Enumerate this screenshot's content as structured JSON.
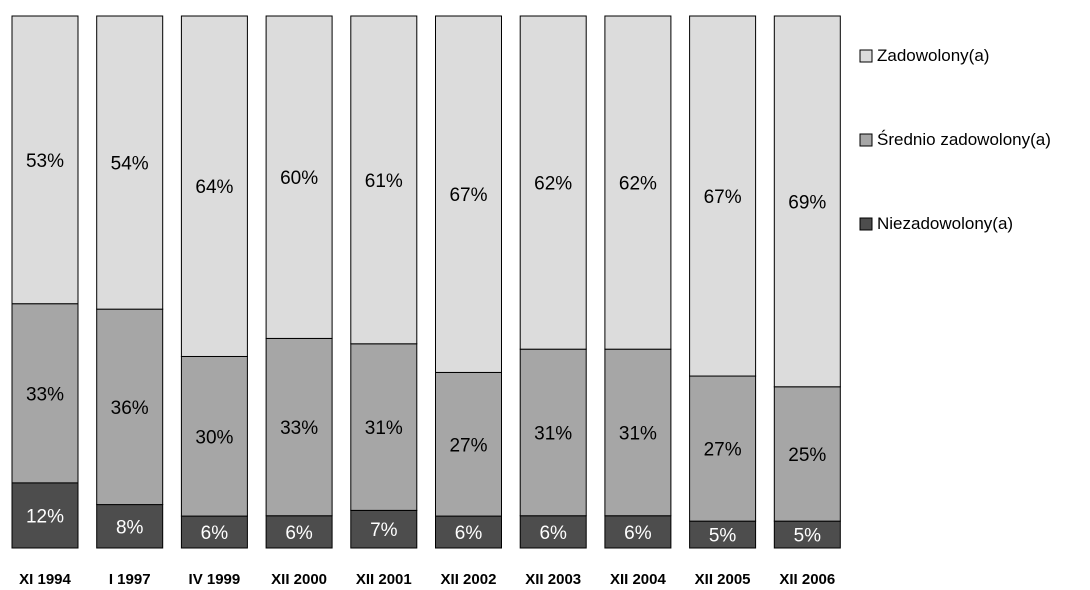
{
  "chart_data": {
    "type": "bar",
    "stacked": true,
    "normalized": true,
    "categories": [
      "XI 1994",
      "I 1997",
      "IV 1999",
      "XII 2000",
      "XII 2001",
      "XII 2002",
      "XII 2003",
      "XII 2004",
      "XII 2005",
      "XII 2006"
    ],
    "series": [
      {
        "name": "Niezadowolony(a)",
        "color": "#4d4d4d",
        "label_color": "#ffffff",
        "values": [
          12,
          8,
          6,
          6,
          7,
          6,
          6,
          6,
          5,
          5
        ],
        "labels": [
          "12%",
          "8%",
          "6%",
          "6%",
          "7%",
          "6%",
          "6%",
          "6%",
          "5%",
          "5%"
        ]
      },
      {
        "name": "Średnio zadowolony(a)",
        "color": "#a6a6a6",
        "label_color": "#000000",
        "values": [
          33,
          36,
          30,
          33,
          31,
          27,
          31,
          31,
          27,
          25
        ],
        "labels": [
          "33%",
          "36%",
          "30%",
          "33%",
          "31%",
          "27%",
          "31%",
          "31%",
          "27%",
          "25%"
        ]
      },
      {
        "name": "Zadowolony(a)",
        "color": "#dcdcdc",
        "label_color": "#000000",
        "values": [
          53,
          54,
          64,
          60,
          61,
          67,
          62,
          62,
          67,
          69
        ],
        "labels": [
          "53%",
          "54%",
          "64%",
          "60%",
          "61%",
          "67%",
          "62%",
          "62%",
          "67%",
          "69%"
        ]
      }
    ],
    "legend": {
      "position": "right",
      "order": [
        "Zadowolony(a)",
        "Średnio zadowolony(a)",
        "Niezadowolony(a)"
      ]
    },
    "title": "",
    "xlabel": "",
    "ylabel": "",
    "grid": false
  }
}
